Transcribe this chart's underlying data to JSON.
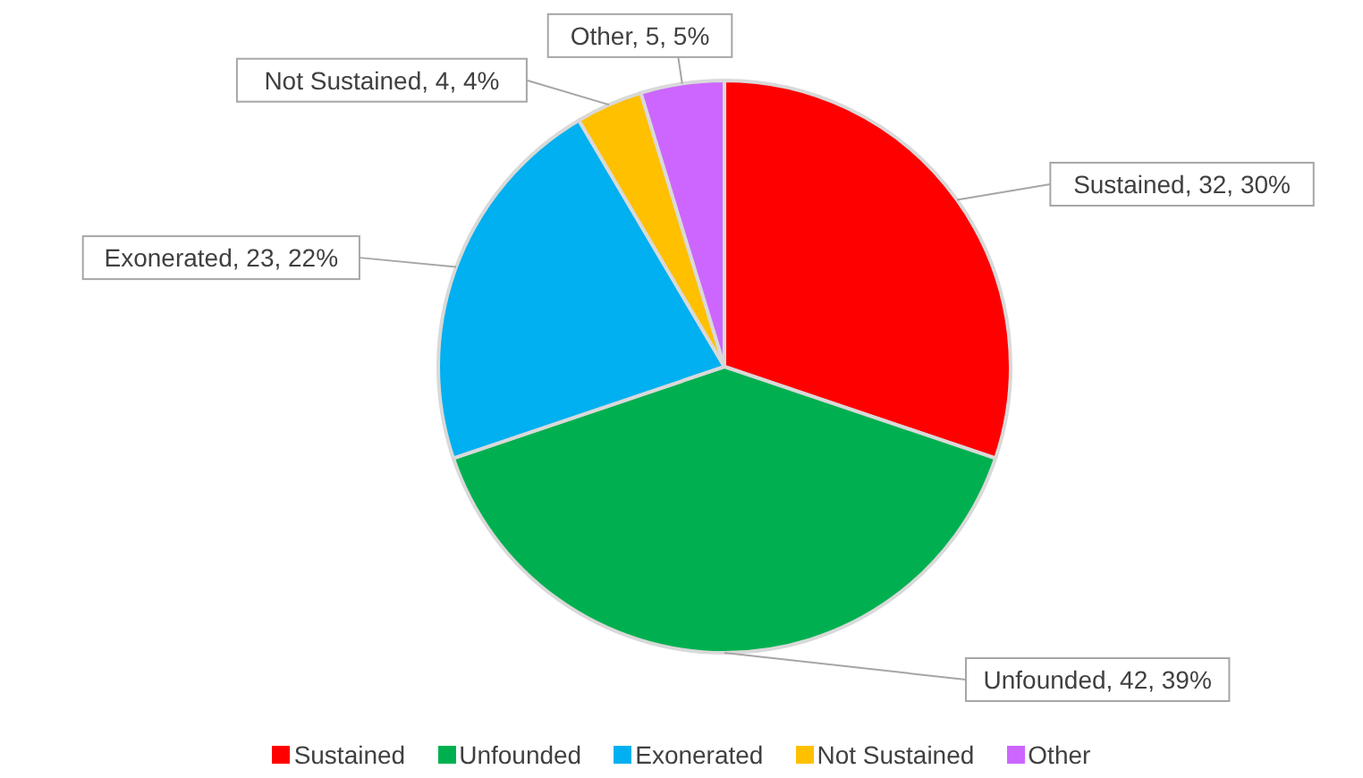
{
  "chart_data": {
    "type": "pie",
    "categories": [
      "Sustained",
      "Unfounded",
      "Exonerated",
      "Not Sustained",
      "Other"
    ],
    "values": [
      32,
      42,
      23,
      4,
      5
    ],
    "colors": [
      "#ff0000",
      "#00b050",
      "#00b0f0",
      "#ffc000",
      "#cc66ff"
    ],
    "value_labels": [
      ", 32, 30%",
      ", 42, 39%",
      ", 23, 22%",
      ", 4, 4%",
      ", 5, 5%"
    ],
    "legend": "bottom"
  }
}
